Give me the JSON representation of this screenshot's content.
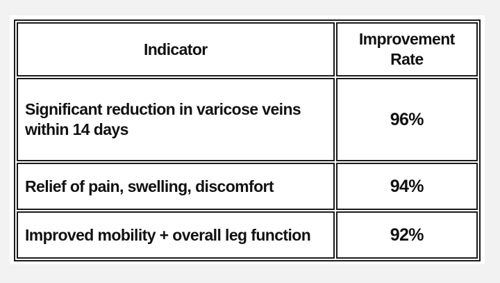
{
  "header": {
    "columns": [
      "Indicator",
      "Improvement Rate"
    ]
  },
  "table": {
    "rows": [
      [
        "Significant reduction in varicose veins within 14 days",
        "96%"
      ],
      [
        "Relief of pain, swelling, discomfort",
        "94%"
      ],
      [
        "Improved mobility + overall leg function",
        "92%"
      ]
    ]
  }
}
